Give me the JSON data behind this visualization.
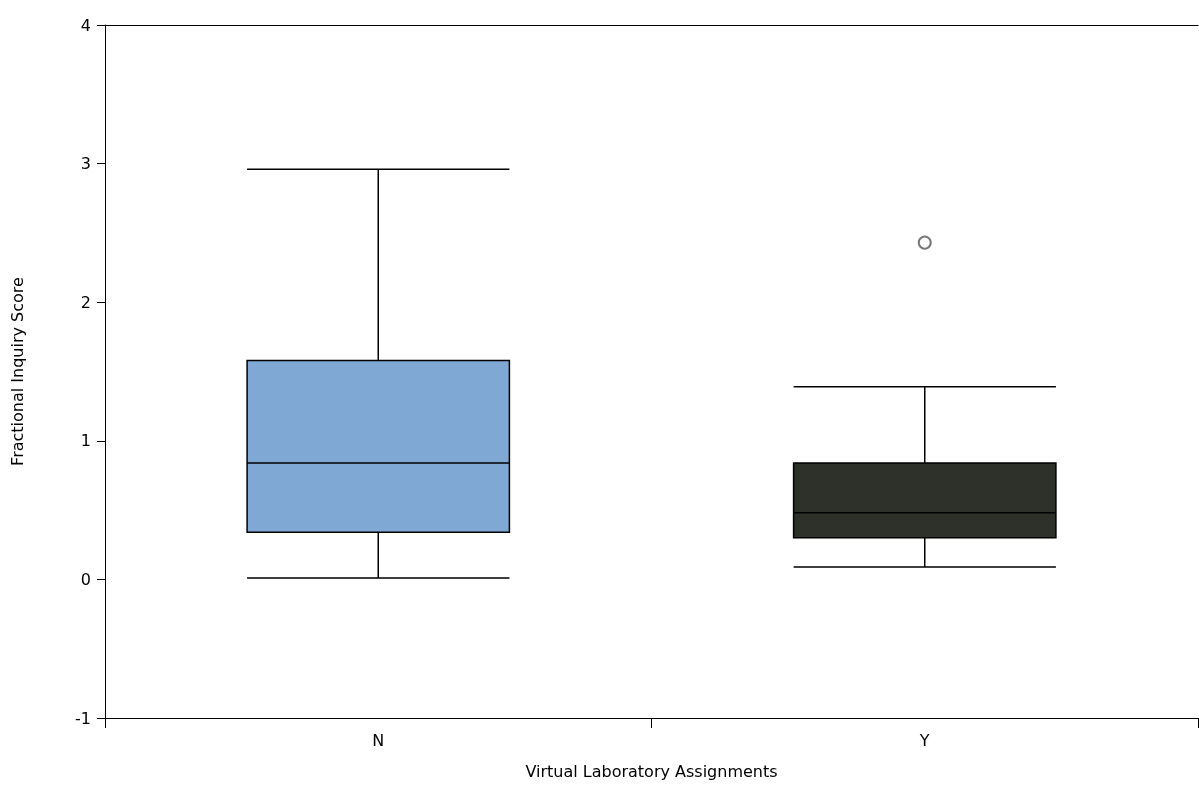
{
  "chart_data": {
    "type": "box",
    "xlabel": "Virtual Laboratory Assignments",
    "ylabel": "Fractional Inquiry Score",
    "categories": [
      "N",
      "Y"
    ],
    "colors": [
      "#7fa8d4",
      "#2e302a"
    ],
    "boxes": [
      {
        "low": 0.01,
        "q1": 0.34,
        "median": 0.84,
        "q3": 1.58,
        "high": 2.96
      },
      {
        "low": 0.09,
        "q1": 0.3,
        "median": 0.48,
        "q3": 0.84,
        "high": 1.39,
        "outliers": [
          2.43
        ]
      }
    ],
    "ylim": [
      -1,
      4
    ],
    "yticks": [
      -1,
      0,
      1,
      2,
      3,
      4
    ],
    "grid": false
  }
}
